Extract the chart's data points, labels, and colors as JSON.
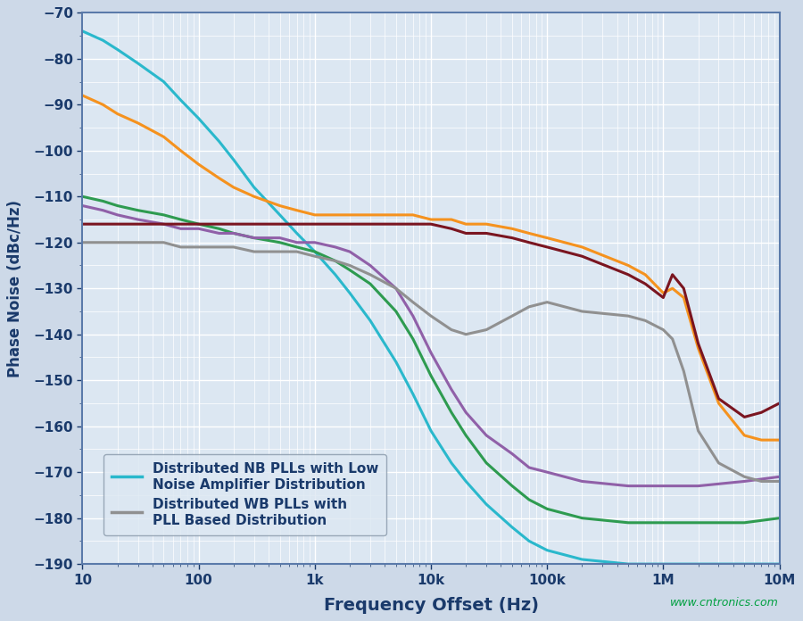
{
  "title": "",
  "xlabel": "Frequency Offset (Hz)",
  "ylabel": "Phase Noise (dBc/Hz)",
  "xlim": [
    10,
    10000000
  ],
  "ylim": [
    -190,
    -70
  ],
  "yticks": [
    -190,
    -180,
    -170,
    -160,
    -150,
    -140,
    -130,
    -120,
    -110,
    -100,
    -90,
    -80,
    -70
  ],
  "xtick_labels": [
    "10",
    "100",
    "1k",
    "10k",
    "100k",
    "1M",
    "10M"
  ],
  "xtick_vals": [
    10,
    100,
    1000,
    10000,
    100000,
    1000000,
    10000000
  ],
  "background_color": "#cdd9e8",
  "plot_bg_color": "#dce7f2",
  "grid_major_color": "#ffffff",
  "grid_minor_color": "#e8eef5",
  "legend_items": [
    {
      "label": "Distributed NB PLLs with Low\nNoise Amplifier Distribution",
      "color": "#2ab8cc"
    },
    {
      "label": "Distributed WB PLLs with\nPLL Based Distribution",
      "color": "#909090"
    }
  ],
  "curves": {
    "cyan": {
      "color": "#2ab8cc",
      "lw": 2.2,
      "x": [
        10,
        15,
        20,
        30,
        50,
        70,
        100,
        150,
        200,
        300,
        500,
        700,
        1000,
        1500,
        2000,
        3000,
        5000,
        7000,
        10000,
        15000,
        20000,
        30000,
        50000,
        70000,
        100000,
        200000,
        500000,
        1000000,
        2000000,
        5000000,
        10000000
      ],
      "y": [
        -74,
        -76,
        -78,
        -81,
        -85,
        -89,
        -93,
        -98,
        -102,
        -108,
        -114,
        -118,
        -122,
        -127,
        -131,
        -137,
        -146,
        -153,
        -161,
        -168,
        -172,
        -177,
        -182,
        -185,
        -187,
        -189,
        -190,
        -190,
        -190,
        -190,
        -190
      ]
    },
    "orange": {
      "color": "#f5921e",
      "lw": 2.2,
      "x": [
        10,
        15,
        20,
        30,
        50,
        70,
        100,
        150,
        200,
        300,
        500,
        700,
        1000,
        1500,
        2000,
        3000,
        5000,
        7000,
        10000,
        15000,
        20000,
        30000,
        50000,
        70000,
        100000,
        200000,
        500000,
        700000,
        1000000,
        1200000,
        1500000,
        2000000,
        3000000,
        5000000,
        7000000,
        10000000
      ],
      "y": [
        -88,
        -90,
        -92,
        -94,
        -97,
        -100,
        -103,
        -106,
        -108,
        -110,
        -112,
        -113,
        -114,
        -114,
        -114,
        -114,
        -114,
        -114,
        -115,
        -115,
        -116,
        -116,
        -117,
        -118,
        -119,
        -121,
        -125,
        -127,
        -131,
        -130,
        -132,
        -143,
        -155,
        -162,
        -163,
        -163
      ]
    },
    "green": {
      "color": "#2e9b50",
      "lw": 2.2,
      "x": [
        10,
        15,
        20,
        30,
        50,
        70,
        100,
        150,
        200,
        300,
        500,
        700,
        1000,
        1500,
        2000,
        3000,
        5000,
        7000,
        10000,
        15000,
        20000,
        30000,
        50000,
        70000,
        100000,
        200000,
        500000,
        1000000,
        2000000,
        5000000,
        10000000
      ],
      "y": [
        -110,
        -111,
        -112,
        -113,
        -114,
        -115,
        -116,
        -117,
        -118,
        -119,
        -120,
        -121,
        -122,
        -124,
        -126,
        -129,
        -135,
        -141,
        -149,
        -157,
        -162,
        -168,
        -173,
        -176,
        -178,
        -180,
        -181,
        -181,
        -181,
        -181,
        -180
      ]
    },
    "purple": {
      "color": "#9060a8",
      "lw": 2.2,
      "x": [
        10,
        15,
        20,
        30,
        50,
        70,
        100,
        150,
        200,
        300,
        500,
        700,
        1000,
        1500,
        2000,
        3000,
        5000,
        7000,
        10000,
        15000,
        20000,
        30000,
        50000,
        70000,
        100000,
        200000,
        500000,
        1000000,
        2000000,
        5000000,
        10000000
      ],
      "y": [
        -112,
        -113,
        -114,
        -115,
        -116,
        -117,
        -117,
        -118,
        -118,
        -119,
        -119,
        -120,
        -120,
        -121,
        -122,
        -125,
        -130,
        -136,
        -144,
        -152,
        -157,
        -162,
        -166,
        -169,
        -170,
        -172,
        -173,
        -173,
        -173,
        -172,
        -171
      ]
    },
    "darkred": {
      "color": "#7a1520",
      "lw": 2.2,
      "x": [
        10,
        15,
        20,
        30,
        50,
        70,
        100,
        150,
        200,
        300,
        500,
        700,
        1000,
        1500,
        2000,
        3000,
        5000,
        7000,
        10000,
        15000,
        20000,
        30000,
        50000,
        70000,
        100000,
        200000,
        500000,
        700000,
        1000000,
        1200000,
        1500000,
        2000000,
        3000000,
        5000000,
        7000000,
        10000000
      ],
      "y": [
        -116,
        -116,
        -116,
        -116,
        -116,
        -116,
        -116,
        -116,
        -116,
        -116,
        -116,
        -116,
        -116,
        -116,
        -116,
        -116,
        -116,
        -116,
        -116,
        -117,
        -118,
        -118,
        -119,
        -120,
        -121,
        -123,
        -127,
        -129,
        -132,
        -127,
        -130,
        -142,
        -154,
        -158,
        -157,
        -155
      ]
    },
    "gray": {
      "color": "#909090",
      "lw": 2.2,
      "x": [
        10,
        15,
        20,
        30,
        50,
        70,
        100,
        150,
        200,
        300,
        500,
        700,
        1000,
        1500,
        2000,
        3000,
        5000,
        7000,
        10000,
        15000,
        20000,
        30000,
        50000,
        70000,
        100000,
        200000,
        500000,
        700000,
        1000000,
        1200000,
        1500000,
        2000000,
        3000000,
        5000000,
        7000000,
        10000000
      ],
      "y": [
        -120,
        -120,
        -120,
        -120,
        -120,
        -121,
        -121,
        -121,
        -121,
        -122,
        -122,
        -122,
        -123,
        -124,
        -125,
        -127,
        -130,
        -133,
        -136,
        -139,
        -140,
        -139,
        -136,
        -134,
        -133,
        -135,
        -136,
        -137,
        -139,
        -141,
        -148,
        -161,
        -168,
        -171,
        -172,
        -172
      ]
    }
  },
  "watermark": "www.cntronics.com",
  "watermark_color": "#00a040",
  "label_color": "#1a3a6b",
  "tick_label_color": "#1a3a6b"
}
